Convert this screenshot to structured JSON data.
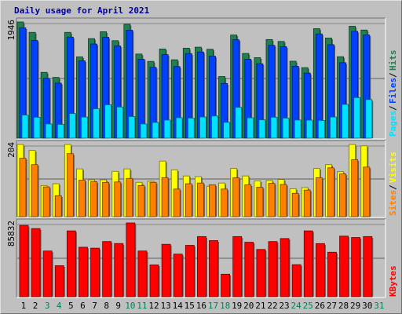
{
  "title": "Daily usage for April 2021",
  "colors": {
    "background": "#c0c0c0",
    "hits": "#208050",
    "files": "#0040ff",
    "pages": "#00e0ff",
    "visits": "#ffff00",
    "sites": "#ff8000",
    "kbytes": "#ff0000",
    "weekend": "#00805c",
    "weekday": "#000000",
    "slash": "#000000"
  },
  "chart_data": [
    {
      "type": "bar",
      "panel": "hits-files-pages",
      "categories": [
        "1",
        "2",
        "3",
        "4",
        "5",
        "6",
        "7",
        "8",
        "9",
        "10",
        "11",
        "12",
        "13",
        "14",
        "15",
        "16",
        "17",
        "18",
        "19",
        "20",
        "21",
        "22",
        "23",
        "24",
        "25",
        "26",
        "27",
        "28",
        "29",
        "30",
        "31"
      ],
      "ylim": [
        0,
        1946
      ],
      "y_tick_label": "1946",
      "series": [
        {
          "name": "Hits",
          "values": [
            1946,
            1772,
            1102,
            1017,
            1772,
            1361,
            1667,
            1783,
            1633,
            1908,
            1409,
            1286,
            1494,
            1313,
            1507,
            1524,
            1489,
            1032,
            1728,
            1419,
            1348,
            1652,
            1620,
            1289,
            1181,
            1834,
            1677,
            1364,
            1874,
            1811,
            0
          ]
        },
        {
          "name": "Files",
          "values": [
            1847,
            1637,
            1001,
            922,
            1693,
            1296,
            1577,
            1689,
            1544,
            1809,
            1322,
            1187,
            1400,
            1199,
            1417,
            1443,
            1374,
            916,
            1648,
            1322,
            1246,
            1555,
            1532,
            1204,
            1090,
            1746,
            1566,
            1264,
            1789,
            1728,
            0
          ]
        },
        {
          "name": "Pages",
          "values": [
            387,
            350,
            238,
            231,
            413,
            354,
            492,
            559,
            522,
            362,
            238,
            264,
            303,
            342,
            336,
            355,
            371,
            265,
            516,
            341,
            307,
            350,
            336,
            304,
            302,
            297,
            354,
            566,
            679,
            646,
            0
          ]
        }
      ]
    },
    {
      "type": "bar",
      "panel": "visits-sites",
      "categories": [
        "1",
        "2",
        "3",
        "4",
        "5",
        "6",
        "7",
        "8",
        "9",
        "10",
        "11",
        "12",
        "13",
        "14",
        "15",
        "16",
        "17",
        "18",
        "19",
        "20",
        "21",
        "22",
        "23",
        "24",
        "25",
        "26",
        "27",
        "28",
        "29",
        "30",
        "31"
      ],
      "ylim": [
        0,
        204
      ],
      "y_tick_label": "204",
      "series": [
        {
          "name": "Visits",
          "values": [
            204,
            187,
            88,
            93,
            204,
            135,
            104,
            104,
            128,
            135,
            97,
            100,
            157,
            132,
            115,
            113,
            86,
            95,
            136,
            115,
            101,
            102,
            105,
            79,
            82,
            136,
            147,
            127,
            204,
            200,
            0
          ]
        },
        {
          "name": "Sites",
          "values": [
            165,
            147,
            84,
            59,
            178,
            103,
            99,
            97,
            98,
            108,
            88,
            97,
            110,
            78,
            93,
            95,
            90,
            78,
            110,
            90,
            83,
            94,
            91,
            66,
            75,
            110,
            138,
            121,
            161,
            140,
            0
          ]
        }
      ]
    },
    {
      "type": "bar",
      "panel": "kbytes",
      "categories": [
        "1",
        "2",
        "3",
        "4",
        "5",
        "6",
        "7",
        "8",
        "9",
        "10",
        "11",
        "12",
        "13",
        "14",
        "15",
        "16",
        "17",
        "18",
        "19",
        "20",
        "21",
        "22",
        "23",
        "24",
        "25",
        "26",
        "27",
        "28",
        "29",
        "30",
        "31"
      ],
      "ylim": [
        0,
        85832
      ],
      "y_tick_label": "85832",
      "series": [
        {
          "name": "KBytes",
          "values": [
            83000,
            79300,
            53200,
            36100,
            76600,
            57600,
            56500,
            64200,
            61900,
            85832,
            53200,
            37000,
            61000,
            49600,
            59800,
            70000,
            65300,
            26200,
            70000,
            63400,
            55000,
            64200,
            67700,
            37300,
            76600,
            61800,
            51800,
            70500,
            68900,
            70000,
            0
          ]
        }
      ]
    }
  ],
  "legends": {
    "top": [
      "Pages",
      "Files",
      "Hits"
    ],
    "middle": [
      "Sites",
      "Visits"
    ],
    "bottom": [
      "KBytes"
    ],
    "separator": "/"
  },
  "weekend_days": [
    "3",
    "4",
    "10",
    "11",
    "17",
    "18",
    "24",
    "25",
    "31"
  ]
}
